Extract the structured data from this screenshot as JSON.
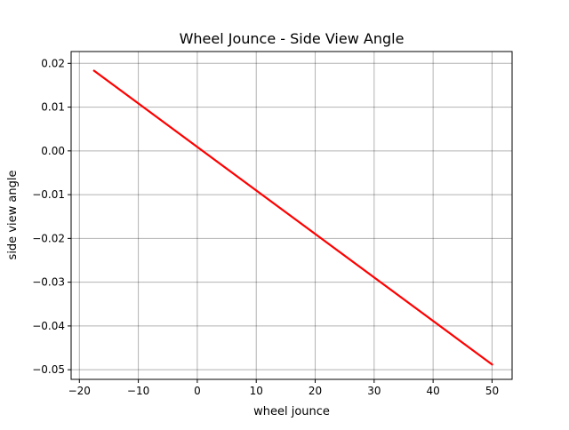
{
  "chart_data": {
    "type": "line",
    "title": "Wheel Jounce - Side View Angle",
    "xlabel": "wheel jounce",
    "ylabel": "side view angle",
    "xlim": [
      -21.4,
      53.4
    ],
    "ylim": [
      -0.0522,
      0.0227
    ],
    "x_ticks": [
      -20,
      -10,
      0,
      10,
      20,
      30,
      40,
      50
    ],
    "x_tick_labels": [
      "−20",
      "−10",
      "0",
      "10",
      "20",
      "30",
      "40",
      "50"
    ],
    "y_ticks": [
      0.02,
      0.01,
      0.0,
      -0.01,
      -0.02,
      -0.03,
      -0.04,
      -0.05
    ],
    "y_tick_labels": [
      "0.02",
      "0.01",
      "0.00",
      "−0.01",
      "−0.02",
      "−0.03",
      "−0.04",
      "−0.05"
    ],
    "grid": true,
    "legend": "none",
    "series": [
      {
        "color": "#ff0000",
        "x": [
          -17.5,
          50
        ],
        "y": [
          0.0183,
          -0.0488
        ]
      }
    ]
  }
}
